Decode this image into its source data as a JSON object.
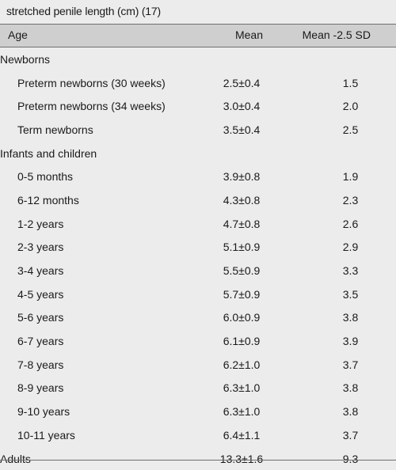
{
  "caption": "stretched penile length (cm) (17)",
  "columns": {
    "age": "Age",
    "mean": "Mean",
    "sd": "Mean -2.5 SD"
  },
  "rows": [
    {
      "age": "Newborns",
      "mean": "",
      "sd": "",
      "group": true
    },
    {
      "age": "Preterm newborns (30 weeks)",
      "mean": "2.5±0.4",
      "sd": "1.5"
    },
    {
      "age": "Preterm newborns (34 weeks)",
      "mean": "3.0±0.4",
      "sd": "2.0"
    },
    {
      "age": "Term newborns",
      "mean": "3.5±0.4",
      "sd": "2.5"
    },
    {
      "age": "Infants and children",
      "mean": "",
      "sd": "",
      "group": true
    },
    {
      "age": "0-5 months",
      "mean": "3.9±0.8",
      "sd": "1.9"
    },
    {
      "age": "6-12 months",
      "mean": "4.3±0.8",
      "sd": "2.3"
    },
    {
      "age": "1-2 years",
      "mean": "4.7±0.8",
      "sd": "2.6"
    },
    {
      "age": "2-3 years",
      "mean": "5.1±0.9",
      "sd": "2.9"
    },
    {
      "age": "3-4 years",
      "mean": "5.5±0.9",
      "sd": "3.3"
    },
    {
      "age": "4-5 years",
      "mean": "5.7±0.9",
      "sd": "3.5"
    },
    {
      "age": "5-6 years",
      "mean": "6.0±0.9",
      "sd": "3.8"
    },
    {
      "age": "6-7 years",
      "mean": "6.1±0.9",
      "sd": "3.9"
    },
    {
      "age": "7-8 years",
      "mean": "6.2±1.0",
      "sd": "3.7"
    },
    {
      "age": "8-9 years",
      "mean": "6.3±1.0",
      "sd": "3.8"
    },
    {
      "age": "9-10 years",
      "mean": "6.3±1.0",
      "sd": "3.8"
    },
    {
      "age": "10-11 years",
      "mean": "6.4±1.1",
      "sd": "3.7"
    },
    {
      "age": "Adults",
      "mean": "13.3±1.6",
      "sd": "9.3",
      "group": true
    }
  ]
}
